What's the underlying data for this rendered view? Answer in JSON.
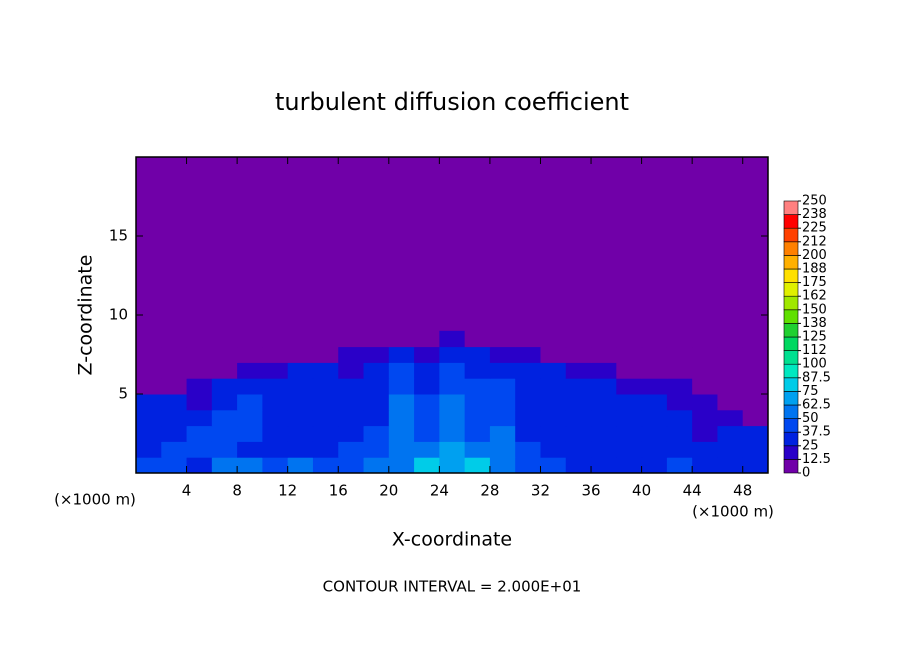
{
  "chart_data": {
    "type": "contour",
    "title": "turbulent diffusion coefficient",
    "x_label": "X-coordinate",
    "y_label": "Z-coordinate",
    "annotations": [
      "(×1000 m)",
      "(×1000 m)",
      "CONTOUR INTERVAL = 2.000E+01"
    ],
    "xlim": [
      0,
      50
    ],
    "xticks": [
      4,
      8,
      12,
      16,
      20,
      24,
      28,
      32,
      36,
      40,
      44,
      48
    ],
    "ylim": [
      0,
      20
    ],
    "yticks": [
      5,
      10,
      15
    ],
    "background": "#7000a8",
    "x": [
      1,
      3,
      5,
      7,
      9,
      11,
      13,
      15,
      17,
      19,
      21,
      23,
      25,
      27,
      29,
      31,
      33,
      35,
      37,
      39,
      41,
      43,
      45,
      47,
      49
    ],
    "y": [
      0.5,
      1.5,
      2.5,
      3.5,
      4.5,
      5.5,
      6.5,
      7.5,
      8.5
    ],
    "z": [
      [
        40,
        45,
        35,
        50,
        55,
        45,
        50,
        45,
        40,
        50,
        60,
        75,
        70,
        80,
        55,
        45,
        40,
        35,
        30,
        30,
        35,
        40,
        30,
        35,
        30
      ],
      [
        35,
        40,
        45,
        40,
        35,
        30,
        30,
        35,
        40,
        45,
        55,
        50,
        65,
        55,
        50,
        40,
        35,
        30,
        30,
        35,
        30,
        30,
        25,
        30,
        35
      ],
      [
        30,
        35,
        40,
        45,
        40,
        30,
        30,
        35,
        30,
        40,
        50,
        45,
        60,
        45,
        50,
        35,
        30,
        30,
        35,
        30,
        30,
        25,
        20,
        25,
        30
      ],
      [
        25,
        30,
        35,
        45,
        40,
        35,
        30,
        30,
        30,
        35,
        50,
        40,
        55,
        40,
        45,
        30,
        30,
        35,
        30,
        30,
        25,
        25,
        20,
        15,
        10
      ],
      [
        30,
        25,
        20,
        25,
        40,
        35,
        30,
        30,
        25,
        35,
        50,
        40,
        55,
        45,
        45,
        35,
        30,
        30,
        30,
        25,
        25,
        20,
        15,
        10,
        10
      ],
      [
        10,
        10,
        15,
        25,
        30,
        30,
        30,
        25,
        25,
        30,
        45,
        35,
        45,
        40,
        40,
        30,
        30,
        25,
        25,
        20,
        20,
        15,
        10,
        5,
        5
      ],
      [
        5,
        5,
        5,
        10,
        15,
        20,
        25,
        25,
        20,
        25,
        40,
        30,
        40,
        35,
        30,
        25,
        25,
        20,
        15,
        10,
        5,
        5,
        5,
        5,
        5
      ],
      [
        5,
        5,
        5,
        5,
        5,
        5,
        5,
        10,
        15,
        20,
        25,
        20,
        25,
        25,
        20,
        15,
        10,
        5,
        5,
        5,
        5,
        5,
        5,
        5,
        5
      ],
      [
        5,
        5,
        5,
        5,
        5,
        5,
        5,
        5,
        5,
        5,
        10,
        10,
        15,
        10,
        10,
        5,
        5,
        5,
        5,
        5,
        5,
        5,
        5,
        5,
        5
      ]
    ],
    "colorbar": {
      "levels": [
        0,
        12.5,
        25,
        37.5,
        50,
        62.5,
        75,
        87.5,
        100,
        {
          "value": 112.5,
          "label": "112"
        },
        125,
        {
          "value": 137.5,
          "label": "138"
        },
        150,
        {
          "value": 162.5,
          "label": "162"
        },
        175,
        {
          "value": 187.5,
          "label": "188"
        },
        200,
        {
          "value": 212.5,
          "label": "212"
        },
        225,
        {
          "value": 237.5,
          "label": "238"
        },
        250
      ],
      "colors": [
        "#7000a8",
        "#2a00c8",
        "#0022e0",
        "#0048f0",
        "#0074f0",
        "#00a0f0",
        "#00cce8",
        "#00e8c0",
        "#00e090",
        "#00d860",
        "#20d030",
        "#60e000",
        "#a0e800",
        "#e0f000",
        "#ffe000",
        "#ffb000",
        "#ff8000",
        "#ff4000",
        "#ff0000",
        "#ff8080"
      ]
    }
  }
}
